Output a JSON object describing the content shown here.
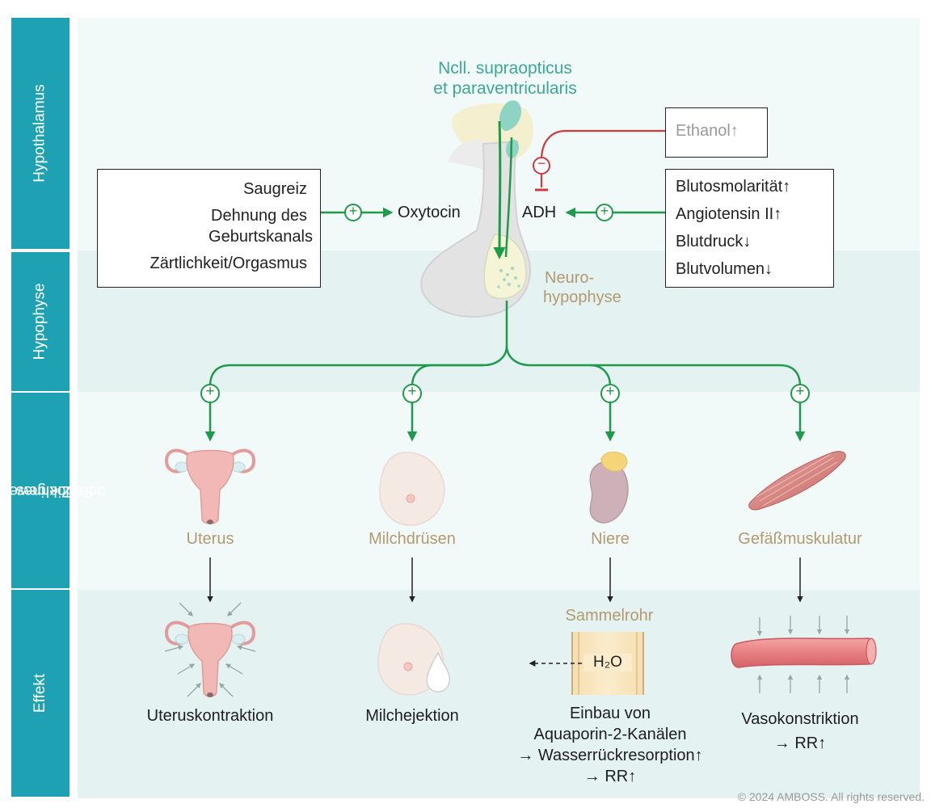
{
  "rows": {
    "hypothalamus": "Hypothalamus",
    "hypophyse": "Hypophyse",
    "organ_line1": "Endokrines Organ",
    "organ_line2": "oder Zielgewebe",
    "effekt": "Effekt"
  },
  "nuclei": {
    "line1": "Ncll. supraopticus",
    "line2": "et paraventricularis"
  },
  "neurohypophyse": {
    "line1": "Neuro-",
    "line2": "hypophyse"
  },
  "oxytocin_stimuli": [
    "Saugreiz",
    "Dehnung des",
    "Geburtskanals",
    "Zärtlichkeit/Orgasmus"
  ],
  "oxytocin_label": "Oxytocin",
  "adh_label": "ADH",
  "ethanol_label": "Ethanol↑",
  "adh_stimuli": [
    "Blutosmolarität↑",
    "Angiotensin II↑",
    "Blutdruck↓",
    "Blutvolumen↓"
  ],
  "symbols": {
    "plus": "+",
    "minus": "−"
  },
  "organs": [
    "Uterus",
    "Milchdrüsen",
    "Niere",
    "Gefäßmuskulatur"
  ],
  "sammelrohr": "Sammelrohr",
  "h2o": "H₂O",
  "effects": {
    "uterus": "Uteruskontraktion",
    "milch": "Milchejektion",
    "niere": [
      "Einbau von",
      "Aquaporin-2-Kanälen",
      "→ Wasserrückresorption↑",
      "→ RR↑"
    ],
    "gefaess": [
      "Vasokonstriktion",
      "→ RR↑"
    ]
  },
  "copyright": "© 2024 AMBOSS. All rights reserved.",
  "colors": {
    "sidebar": "#1ea2b3",
    "arrow_green": "#1f9a4a",
    "inhibit_red": "#d0393e",
    "nuclei_teal": "#3aa893",
    "organ_tan": "#b29a70"
  }
}
